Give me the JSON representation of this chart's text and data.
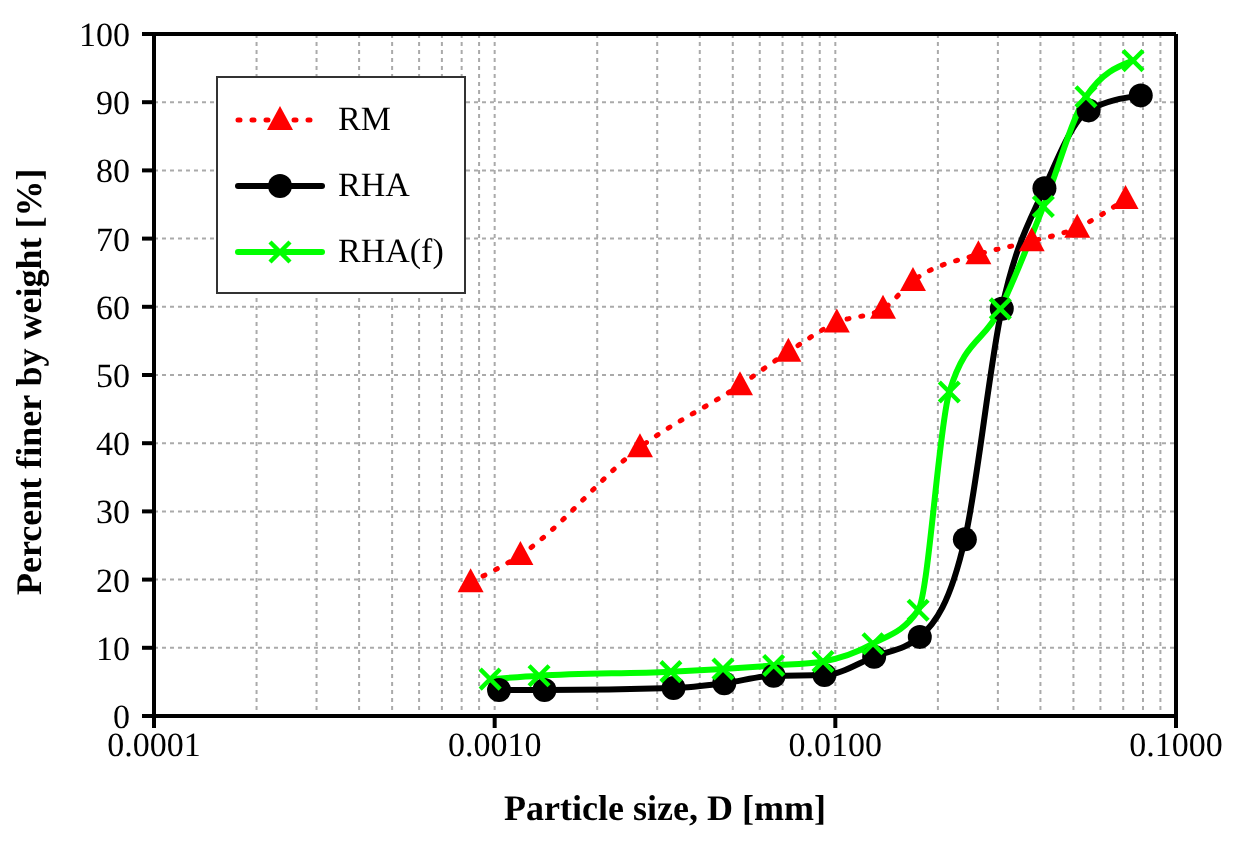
{
  "chart_data": {
    "type": "line",
    "xlabel": "Particle size, D [mm]",
    "ylabel": "Percent finer by weight [%]",
    "log": "x",
    "xlim": [
      0.0001,
      0.1
    ],
    "xticks": [
      {
        "value": 0.0001,
        "label": "0.0001"
      },
      {
        "value": 0.001,
        "label": "0.0010"
      },
      {
        "value": 0.01,
        "label": "0.0100"
      },
      {
        "value": 0.1,
        "label": "0.1000"
      }
    ],
    "ylim": [
      0,
      100
    ],
    "yticks": [
      0,
      10,
      20,
      30,
      40,
      50,
      60,
      70,
      80,
      90,
      100
    ],
    "grid": true,
    "legend": "top left",
    "series": [
      {
        "name": "RM",
        "color": "#ff0000",
        "marker": "triangle",
        "line_style": "dotted",
        "x": [
          0.00085,
          0.00119,
          0.00267,
          0.00525,
          0.00728,
          0.0101,
          0.0138,
          0.0169,
          0.0263,
          0.0377,
          0.0513,
          0.0711
        ],
        "values": [
          19.6,
          23.6,
          39.4,
          48.5,
          53.4,
          57.7,
          59.7,
          63.8,
          67.7,
          69.6,
          71.6,
          75.8
        ]
      },
      {
        "name": "RHA",
        "color": "#000000",
        "marker": "circle",
        "line_style": "solid",
        "x": [
          0.00103,
          0.0014,
          0.00335,
          0.00472,
          0.00659,
          0.00929,
          0.013,
          0.0177,
          0.024,
          0.0308,
          0.0411,
          0.0554,
          0.0788
        ],
        "values": [
          3.8,
          3.8,
          4.1,
          4.8,
          5.9,
          6.0,
          8.7,
          11.6,
          25.9,
          59.7,
          77.4,
          88.8,
          91.0
        ]
      },
      {
        "name": "RHA(f)",
        "color": "#00ff00",
        "marker": "cross",
        "line_style": "solid",
        "x": [
          0.00097,
          0.00135,
          0.00329,
          0.00468,
          0.00659,
          0.0092,
          0.0129,
          0.0175,
          0.0216,
          0.0305,
          0.0408,
          0.0544,
          0.0748
        ],
        "values": [
          5.4,
          5.9,
          6.5,
          6.9,
          7.4,
          8.0,
          10.6,
          15.5,
          47.5,
          59.7,
          74.7,
          90.8,
          96.1
        ]
      }
    ]
  }
}
